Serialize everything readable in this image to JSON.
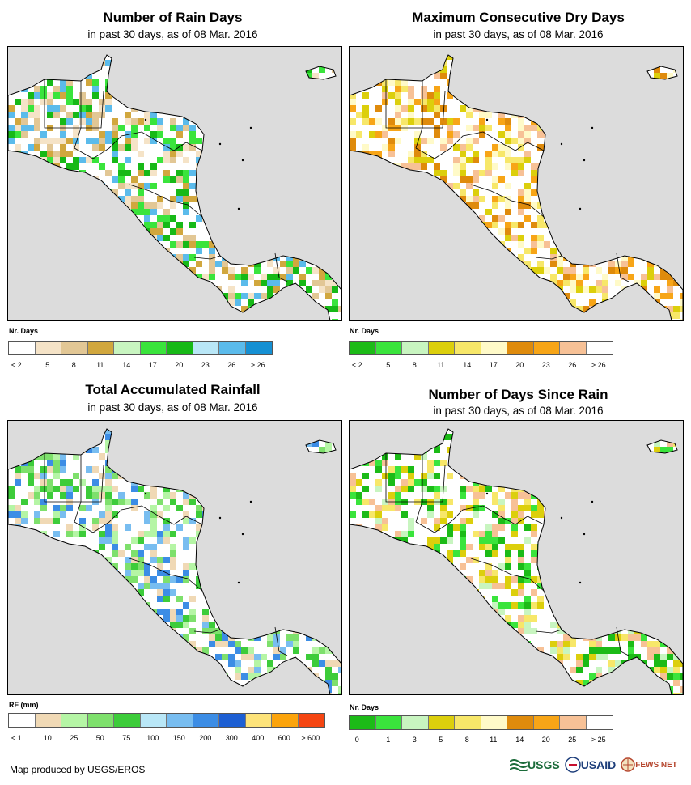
{
  "colors": {
    "ocean": "#dcdcdc",
    "land": "#ffffff"
  },
  "panels": [
    {
      "id": "rain-days",
      "title": "Number of Rain Days",
      "subtitle": "in past 30 days, as of 08 Mar. 2016",
      "legend_title": "Nr. Days",
      "legend_colors": [
        "#ffffff",
        "#f5e3c7",
        "#e2c795",
        "#d1a73e",
        "#c8f5c0",
        "#3ae43c",
        "#17b917",
        "#b9e7f7",
        "#5bbbeb",
        "#1590d3"
      ],
      "legend_labels": [
        "< 2",
        "5",
        "8",
        "11",
        "14",
        "17",
        "20",
        "23",
        "26",
        "> 26"
      ],
      "palette": [
        "#f5e3c7",
        "#e2c795",
        "#d1a73e",
        "#3ae43c",
        "#17b917",
        "#5bbbeb"
      ]
    },
    {
      "id": "dry-days",
      "title": "Maximum Consecutive Dry Days",
      "subtitle": "in past 30 days, as of 08 Mar. 2016",
      "legend_title": "Nr. Days",
      "legend_colors": [
        "#1cbb17",
        "#3ae43c",
        "#c8f5c0",
        "#dccf0c",
        "#f7e769",
        "#fffac8",
        "#df8b0c",
        "#f7a517",
        "#f7c196",
        "#ffffff"
      ],
      "legend_labels": [
        "< 2",
        "5",
        "8",
        "11",
        "14",
        "17",
        "20",
        "23",
        "26",
        "> 26"
      ],
      "palette": [
        "#f7e769",
        "#dccf0c",
        "#df8b0c",
        "#f7a517",
        "#f7c196",
        "#fffac8"
      ]
    },
    {
      "id": "total-rainfall",
      "title": "Total Accumulated Rainfall",
      "subtitle": "in past 30 days, as of 08 Mar. 2016",
      "legend_title": "RF (mm)",
      "legend_colors": [
        "#ffffff",
        "#f0d9b5",
        "#b5f5a5",
        "#7ee06c",
        "#3dcc3a",
        "#b9e7f7",
        "#78bdf0",
        "#3c8de5",
        "#1d5fd3",
        "#fde37a",
        "#fca40b",
        "#f54512"
      ],
      "legend_labels": [
        "< 1",
        "10",
        "25",
        "50",
        "75",
        "100",
        "150",
        "200",
        "300",
        "400",
        "600",
        "> 600"
      ],
      "palette": [
        "#b5f5a5",
        "#7ee06c",
        "#3dcc3a",
        "#78bdf0",
        "#3c8de5",
        "#f0d9b5"
      ]
    },
    {
      "id": "days-since-rain",
      "title": "Number of Days Since Rain",
      "subtitle": "in past 30 days, as of 08 Mar. 2016",
      "legend_title": "Nr. Days",
      "legend_colors": [
        "#1cbb17",
        "#3ae43c",
        "#c8f5c0",
        "#dccf0c",
        "#f7e769",
        "#fffac8",
        "#df8b0c",
        "#f7a517",
        "#f7c196",
        "#ffffff"
      ],
      "legend_labels": [
        "0",
        "1",
        "3",
        "5",
        "8",
        "11",
        "14",
        "20",
        "25",
        "> 25"
      ],
      "palette": [
        "#3ae43c",
        "#1cbb17",
        "#c8f5c0",
        "#f7e769",
        "#dccf0c",
        "#f7c196"
      ]
    }
  ],
  "footer": {
    "credit": "Map produced by USGS/EROS",
    "logos": [
      "USGS",
      "USAID",
      "FEWS NET"
    ]
  }
}
